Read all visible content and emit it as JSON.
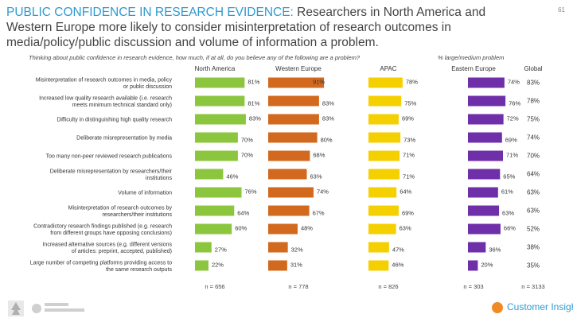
{
  "header": {
    "title_highlight": "PUBLIC CONFIDENCE IN RESEARCH EVIDENCE:",
    "title_rest": " Researchers in North America and Western Europe more likely to consider misinterpretation of research outcomes in media/policy/public discussion and volume of information a problem.",
    "page_number": "61"
  },
  "question": "Thinking about public confidence in research evidence, how much, if at all, do you believe any of the following are a problem?",
  "question_note": "% large/medium problem",
  "footer": {
    "customer_insights": "Customer Insights",
    "elsevier_logo": "elsevier-tree-logo",
    "sense_logo": "sense-about-science-logo"
  },
  "chart_data": {
    "type": "bar",
    "categories": [
      "Misinterpretation of research outcomes in media, policy or public discussion",
      "Increased low quality research available (i.e. research meets minimum technical standard only)",
      "Difficulty in distinguishing high quality research",
      "Deliberate misrepresentation by media",
      "Too many non-peer reviewed research publications",
      "Deliberate misrepresentation by researchers/their institutions",
      "Volume of information",
      "Misinterpretation of research outcomes by researchers/their institutions",
      "Contradictory research findings published (e.g. research from different groups have opposing conclusions)",
      "Increased alternative sources (e.g. different versions of articles: preprint, accepted, published)",
      "Large number of competing platforms providing access to the same research outputs"
    ],
    "series": [
      {
        "name": "North America",
        "color": "#8cc63f",
        "values": [
          81,
          81,
          83,
          70,
          70,
          46,
          76,
          64,
          60,
          27,
          22
        ],
        "n": "n = 656"
      },
      {
        "name": "Western Europe",
        "color": "#d2691e",
        "values": [
          91,
          83,
          83,
          80,
          68,
          63,
          74,
          67,
          48,
          32,
          31
        ],
        "n": "n = 778"
      },
      {
        "name": "APAC",
        "color": "#f5d000",
        "values": [
          78,
          75,
          69,
          73,
          71,
          71,
          64,
          69,
          63,
          47,
          46
        ],
        "n": "n = 826"
      },
      {
        "name": "Eastern Europe",
        "color": "#6e2fa8",
        "values": [
          74,
          76,
          72,
          69,
          71,
          65,
          61,
          63,
          66,
          36,
          20
        ],
        "n": "n = 303"
      },
      {
        "name": "Global",
        "color": "",
        "values": [
          83,
          78,
          75,
          74,
          70,
          64,
          63,
          63,
          52,
          38,
          35
        ],
        "n": "n = 3133"
      }
    ],
    "value_suffix": "%",
    "xlim": [
      0,
      100
    ],
    "legend": "none",
    "grid": false
  }
}
